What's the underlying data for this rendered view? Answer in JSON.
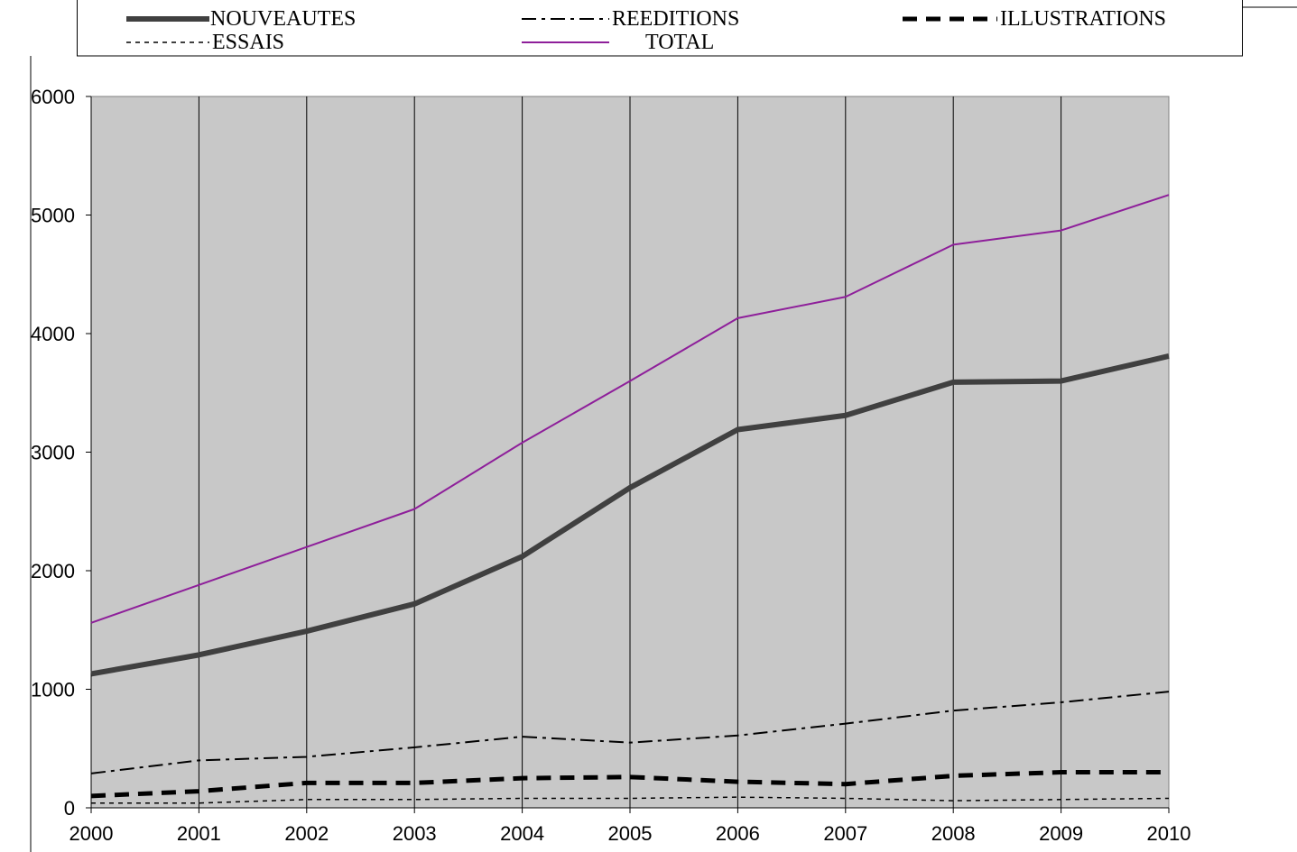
{
  "chart_data": {
    "type": "line",
    "x": [
      2000,
      2001,
      2002,
      2003,
      2004,
      2005,
      2006,
      2007,
      2008,
      2009,
      2010
    ],
    "series": [
      {
        "name": "NOUVEAUTES",
        "color": "#404040",
        "values": [
          1130,
          1290,
          1490,
          1720,
          2120,
          2700,
          3190,
          3310,
          3590,
          3600,
          3810
        ]
      },
      {
        "name": "REEDITIONS",
        "color": "#000000",
        "values": [
          290,
          400,
          430,
          510,
          600,
          550,
          610,
          710,
          820,
          890,
          980
        ]
      },
      {
        "name": "ILLUSTRATIONS",
        "color": "#000000",
        "values": [
          100,
          140,
          210,
          210,
          250,
          260,
          220,
          200,
          270,
          300,
          300
        ]
      },
      {
        "name": "ESSAIS",
        "color": "#000000",
        "values": [
          40,
          40,
          70,
          70,
          80,
          80,
          90,
          80,
          60,
          70,
          80
        ]
      },
      {
        "name": "TOTAL",
        "color": "#8e1f9a",
        "values": [
          1560,
          1880,
          2200,
          2520,
          3080,
          3600,
          4130,
          4310,
          4750,
          4870,
          5170
        ]
      }
    ],
    "xlim": [
      2000,
      2010
    ],
    "xticks": [
      2000,
      2001,
      2002,
      2003,
      2004,
      2005,
      2006,
      2007,
      2008,
      2009,
      2010
    ],
    "ylim": [
      0,
      6000
    ],
    "yticks": [
      0,
      1000,
      2000,
      3000,
      4000,
      5000,
      6000
    ],
    "grid": "vertical",
    "plot_background": "#c8c8c8",
    "legend": "top"
  }
}
